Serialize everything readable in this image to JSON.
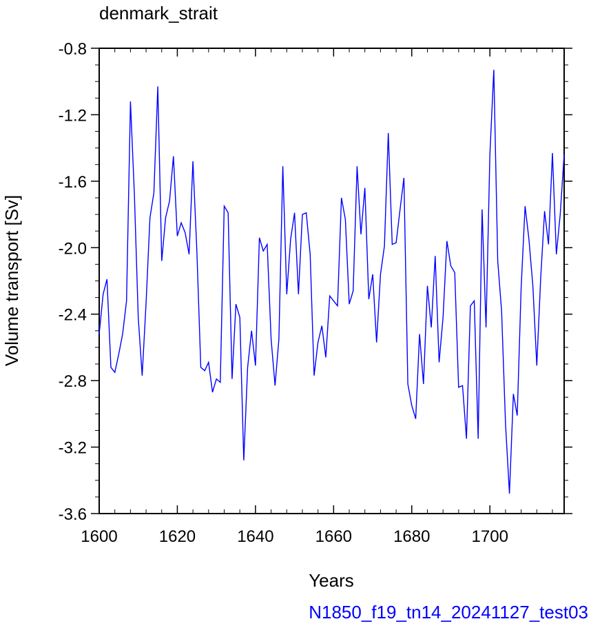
{
  "chart_data": {
    "type": "line",
    "title": "denmark_strait",
    "xlabel": "Years",
    "ylabel": "Volume transport [Sv]",
    "xlim": [
      1600,
      1719
    ],
    "ylim": [
      -3.6,
      -0.8
    ],
    "xticks": [
      1600,
      1620,
      1640,
      1660,
      1680,
      1700
    ],
    "xtick_labels": [
      "1600",
      "1620",
      "1640",
      "1660",
      "1680",
      "1700"
    ],
    "yticks": [
      -3.6,
      -3.2,
      -2.8,
      -2.4,
      -2.0,
      -1.6,
      -1.2,
      -0.8
    ],
    "ytick_labels": [
      "-3.6",
      "-3.2",
      "-2.8",
      "-2.4",
      "-2.0",
      "-1.6",
      "-1.2",
      "-0.8"
    ],
    "grid": false,
    "series": [
      {
        "color": "#0000ff",
        "x": [
          1600,
          1601,
          1602,
          1603,
          1604,
          1605,
          1606,
          1607,
          1608,
          1609,
          1610,
          1611,
          1612,
          1613,
          1614,
          1615,
          1616,
          1617,
          1618,
          1619,
          1620,
          1621,
          1622,
          1623,
          1624,
          1625,
          1626,
          1627,
          1628,
          1629,
          1630,
          1631,
          1632,
          1633,
          1634,
          1635,
          1636,
          1637,
          1638,
          1639,
          1640,
          1641,
          1642,
          1643,
          1644,
          1645,
          1646,
          1647,
          1648,
          1649,
          1650,
          1651,
          1652,
          1653,
          1654,
          1655,
          1656,
          1657,
          1658,
          1659,
          1660,
          1661,
          1662,
          1663,
          1664,
          1665,
          1666,
          1667,
          1668,
          1669,
          1670,
          1671,
          1672,
          1673,
          1674,
          1675,
          1676,
          1677,
          1678,
          1679,
          1680,
          1681,
          1682,
          1683,
          1684,
          1685,
          1686,
          1687,
          1688,
          1689,
          1690,
          1691,
          1692,
          1693,
          1694,
          1695,
          1696,
          1697,
          1698,
          1699,
          1700,
          1701,
          1702,
          1703,
          1704,
          1705,
          1706,
          1707,
          1708,
          1709,
          1710,
          1711,
          1712,
          1713,
          1714,
          1715,
          1716,
          1717,
          1718,
          1719
        ],
        "values": [
          -2.52,
          -2.28,
          -2.19,
          -2.72,
          -2.75,
          -2.64,
          -2.52,
          -2.32,
          -1.12,
          -1.68,
          -2.42,
          -2.77,
          -2.33,
          -1.82,
          -1.67,
          -1.03,
          -2.08,
          -1.82,
          -1.72,
          -1.45,
          -1.93,
          -1.85,
          -1.91,
          -2.04,
          -1.48,
          -2.02,
          -2.72,
          -2.74,
          -2.69,
          -2.87,
          -2.79,
          -2.81,
          -1.75,
          -1.79,
          -2.79,
          -2.34,
          -2.42,
          -3.28,
          -2.72,
          -2.5,
          -2.71,
          -1.94,
          -2.02,
          -1.98,
          -2.55,
          -2.83,
          -2.55,
          -1.51,
          -2.28,
          -1.95,
          -1.79,
          -2.28,
          -1.8,
          -1.79,
          -2.04,
          -2.77,
          -2.57,
          -2.47,
          -2.66,
          -2.29,
          -2.32,
          -2.35,
          -1.7,
          -1.83,
          -2.34,
          -2.26,
          -1.51,
          -1.92,
          -1.64,
          -2.31,
          -2.16,
          -2.57,
          -2.16,
          -1.99,
          -1.31,
          -1.98,
          -1.97,
          -1.77,
          -1.58,
          -2.82,
          -2.95,
          -3.03,
          -2.52,
          -2.82,
          -2.23,
          -2.48,
          -2.05,
          -2.69,
          -2.42,
          -1.96,
          -2.11,
          -2.15,
          -2.84,
          -2.83,
          -3.15,
          -2.35,
          -2.32,
          -3.15,
          -1.77,
          -2.48,
          -1.44,
          -0.93,
          -2.08,
          -2.38,
          -3.06,
          -3.48,
          -2.88,
          -3.01,
          -2.24,
          -1.75,
          -1.95,
          -2.23,
          -2.71,
          -2.18,
          -1.78,
          -1.98,
          -1.43,
          -2.04,
          -1.8,
          -1.44
        ]
      }
    ]
  },
  "footer": {
    "case_name": "N1850_f19_tn14_20241127_test03",
    "color": "#0000ff"
  }
}
